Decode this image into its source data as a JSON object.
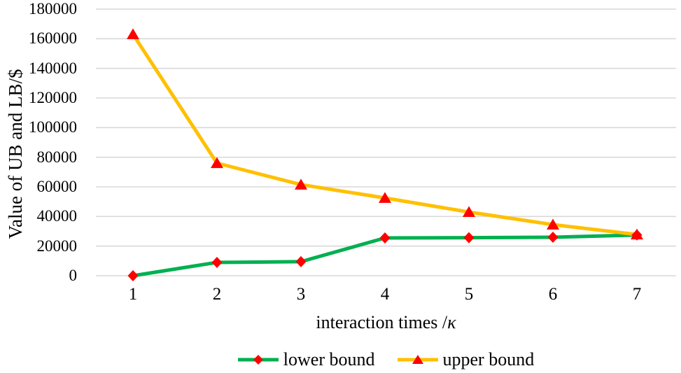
{
  "chart_data": {
    "type": "line",
    "title": "",
    "xlabel": "interaction times /κ",
    "xlabel_text": "interaction times /",
    "xlabel_symbol": "κ",
    "ylabel": "Value of UB and LB/$",
    "x": [
      1,
      2,
      3,
      4,
      5,
      6,
      7
    ],
    "x_tick_labels": [
      "1",
      "2",
      "3",
      "4",
      "5",
      "6",
      "7"
    ],
    "ylim": [
      0,
      180000
    ],
    "yticks": [
      0,
      20000,
      40000,
      60000,
      80000,
      100000,
      120000,
      140000,
      160000,
      180000
    ],
    "grid": "horizontal",
    "gridline_color": "#D9D9D9",
    "background": "#FFFFFF",
    "text_color": "#000000",
    "legend_position": "bottom",
    "series": [
      {
        "name": "lower bound",
        "color": "#00B050",
        "marker": "diamond",
        "marker_color": "#FF0000",
        "values": [
          0,
          9000,
          9500,
          25500,
          25700,
          26000,
          27500
        ]
      },
      {
        "name": "upper bound",
        "color": "#FFC000",
        "marker": "triangle",
        "marker_color": "#FF0000",
        "values": [
          163000,
          76000,
          61500,
          52500,
          43000,
          34500,
          27800
        ]
      }
    ]
  }
}
